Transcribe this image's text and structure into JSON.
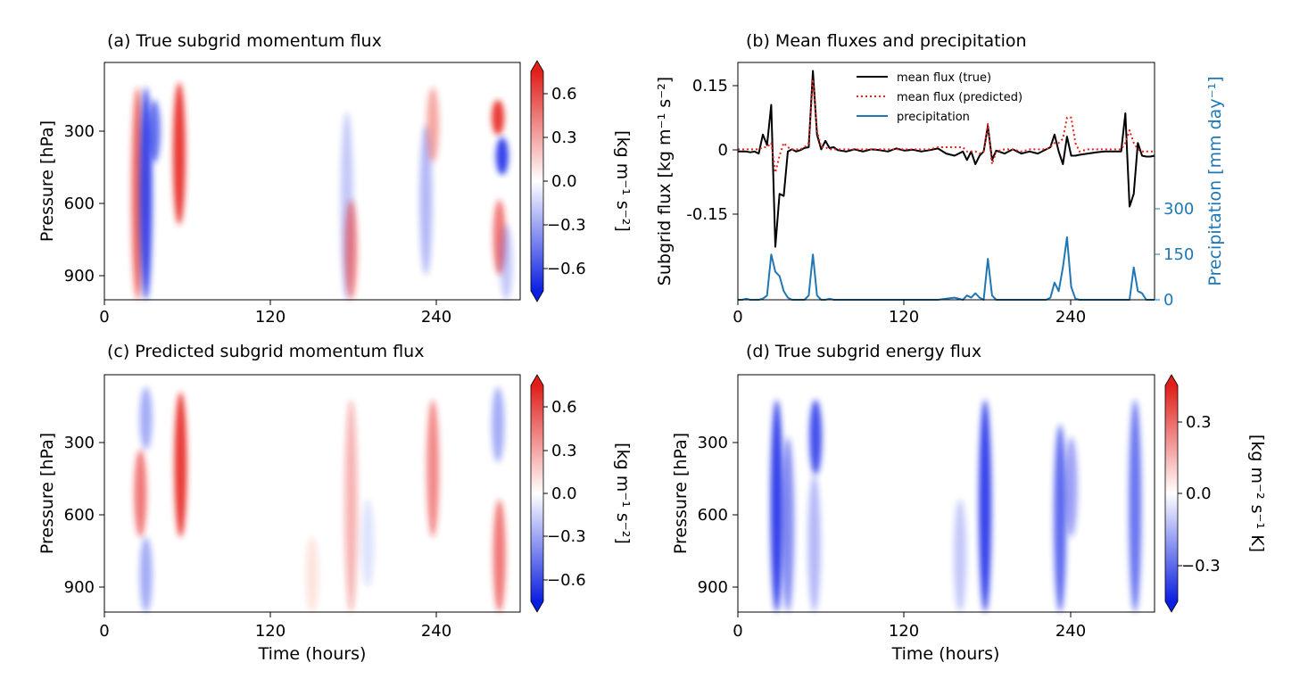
{
  "figure": {
    "panel_a": {
      "title": "(a) True subgrid momentum flux",
      "ylabel": "Pressure [hPa]",
      "yticks": [
        "300",
        "600",
        "900"
      ],
      "xticks": [
        "0",
        "120",
        "240"
      ],
      "colorbar_label": "[kg m⁻¹ s⁻²]",
      "colorbar_ticks": [
        "0.6",
        "0.3",
        "0.0",
        "−0.3",
        "−0.6"
      ]
    },
    "panel_b": {
      "title": "(b) Mean fluxes and precipitation",
      "ylabel_left": "Subgrid flux [kg m⁻¹ s⁻²]",
      "ylabel_right": "Precipitation  [mm day⁻¹]",
      "yticks_left": [
        "0.15",
        "0",
        "-0.15"
      ],
      "yticks_right": [
        "300",
        "150",
        "0"
      ],
      "xticks": [
        "0",
        "120",
        "240"
      ],
      "legend": [
        "mean flux (true)",
        "mean flux (predicted)",
        "precipitation"
      ]
    },
    "panel_c": {
      "title": "(c) Predicted subgrid momentum flux",
      "ylabel": "Pressure [hPa]",
      "xlabel": "Time (hours)",
      "yticks": [
        "300",
        "600",
        "900"
      ],
      "xticks": [
        "0",
        "120",
        "240"
      ],
      "colorbar_label": "[kg m⁻¹ s⁻²]",
      "colorbar_ticks": [
        "0.6",
        "0.3",
        "0.0",
        "−0.3",
        "−0.6"
      ]
    },
    "panel_d": {
      "title": "(d) True subgrid energy flux",
      "ylabel": "Pressure [hPa]",
      "xlabel": "Time (hours)",
      "yticks": [
        "300",
        "600",
        "900"
      ],
      "xticks": [
        "0",
        "120",
        "240"
      ],
      "colorbar_label": "[kg m⁻² s⁻¹ K]",
      "colorbar_ticks": [
        "0.3",
        "0.0",
        "−0.3"
      ]
    }
  },
  "colors": {
    "positive": "#e8221f",
    "negative": "#1f2ee8",
    "true_line": "#000000",
    "predicted_line": "#e8221f",
    "precip_line": "#1f77b4"
  },
  "chart_data": [
    {
      "type": "heatmap",
      "title": "(a) True subgrid momentum flux",
      "xlabel": "",
      "ylabel": "Pressure [hPa]",
      "xlim": [
        0,
        300
      ],
      "ylim_pressure_hPa": [
        1000,
        50
      ],
      "colorbar_range": [
        -0.75,
        0.75
      ],
      "features": [
        {
          "time": 24,
          "p_top": 150,
          "p_bottom": 1000,
          "value": 0.5
        },
        {
          "time": 30,
          "p_top": 150,
          "p_bottom": 1000,
          "value": -0.65
        },
        {
          "time": 36,
          "p_top": 200,
          "p_bottom": 450,
          "value": -0.5
        },
        {
          "time": 54,
          "p_top": 130,
          "p_bottom": 700,
          "value": 0.75
        },
        {
          "time": 175,
          "p_top": 250,
          "p_bottom": 1000,
          "value": -0.2
        },
        {
          "time": 178,
          "p_top": 600,
          "p_bottom": 1000,
          "value": 0.4
        },
        {
          "time": 232,
          "p_top": 300,
          "p_bottom": 900,
          "value": -0.25
        },
        {
          "time": 237,
          "p_top": 150,
          "p_bottom": 450,
          "value": 0.3
        },
        {
          "time": 284,
          "p_top": 200,
          "p_bottom": 340,
          "value": 0.75
        },
        {
          "time": 287,
          "p_top": 350,
          "p_bottom": 500,
          "value": -0.7
        },
        {
          "time": 285,
          "p_top": 600,
          "p_bottom": 900,
          "value": 0.45
        },
        {
          "time": 290,
          "p_top": 700,
          "p_bottom": 1000,
          "value": -0.2
        }
      ]
    },
    {
      "type": "line",
      "title": "(b) Mean fluxes and precipitation",
      "xlabel": "",
      "ylabel": "Subgrid flux [kg m⁻¹ s⁻²]",
      "ylabel_right": "Precipitation  [mm day⁻¹]",
      "xlim": [
        0,
        300
      ],
      "ylim": [
        -0.35,
        0.21
      ],
      "ylim_right": [
        0,
        1100
      ],
      "legend_position": "top-center",
      "x": [
        0,
        3,
        6,
        9,
        12,
        15,
        18,
        21,
        24,
        27,
        30,
        33,
        36,
        39,
        42,
        45,
        48,
        51,
        54,
        57,
        60,
        63,
        66,
        69,
        72,
        78,
        84,
        90,
        96,
        102,
        108,
        114,
        120,
        126,
        132,
        138,
        144,
        150,
        156,
        162,
        165,
        168,
        171,
        174,
        177,
        180,
        183,
        186,
        192,
        198,
        204,
        210,
        216,
        222,
        225,
        228,
        231,
        234,
        237,
        240,
        243,
        246,
        252,
        258,
        264,
        270,
        276,
        279,
        282,
        285,
        288,
        291,
        294,
        297,
        300
      ],
      "series": [
        {
          "name": "mean flux (true)",
          "axis": "left",
          "style": "solid",
          "values": [
            0.0,
            0.0,
            0.0,
            -0.002,
            0.0,
            -0.005,
            0.04,
            0.015,
            0.11,
            -0.225,
            -0.1,
            -0.105,
            0.0,
            0.005,
            0.0,
            0.003,
            0.008,
            0.01,
            0.19,
            0.04,
            0.005,
            0.025,
            0.008,
            0.01,
            0.003,
            0.0,
            0.005,
            0.0,
            0.005,
            0.003,
            0.0,
            0.007,
            0.002,
            0.004,
            0.0,
            0.003,
            0.007,
            -0.005,
            -0.01,
            0.0,
            -0.02,
            0.0,
            -0.03,
            -0.01,
            0.0,
            0.06,
            -0.02,
            0.002,
            -0.005,
            0.005,
            -0.005,
            0.0,
            -0.005,
            0.005,
            0.01,
            0.04,
            0.0,
            -0.03,
            0.035,
            -0.01,
            -0.01,
            -0.008,
            -0.005,
            -0.002,
            0.0,
            0.0,
            0.0,
            0.09,
            -0.13,
            -0.1,
            0.02,
            -0.01,
            -0.012,
            -0.012,
            -0.01
          ]
        },
        {
          "name": "mean flux (predicted)",
          "axis": "left",
          "style": "dotted",
          "values": [
            0.005,
            0.005,
            0.005,
            0.005,
            0.005,
            0.005,
            0.01,
            0.01,
            0.02,
            -0.05,
            -0.01,
            0.02,
            0.01,
            0.005,
            0.005,
            0.005,
            0.01,
            0.02,
            0.17,
            0.05,
            0.01,
            0.01,
            0.005,
            0.005,
            0.005,
            0.005,
            0.005,
            0.005,
            0.005,
            0.005,
            0.005,
            0.005,
            0.005,
            0.005,
            0.005,
            0.005,
            0.01,
            0.01,
            0.01,
            0.01,
            0.0,
            0.0,
            0.0,
            -0.005,
            0.0,
            0.065,
            -0.03,
            0.0,
            0.005,
            0.005,
            0.0,
            0.005,
            0.005,
            0.005,
            0.01,
            0.02,
            0.02,
            0.03,
            0.08,
            0.08,
            0.02,
            0.0,
            0.005,
            0.005,
            0.005,
            0.005,
            0.005,
            0.02,
            0.05,
            0.02,
            0.005,
            0.0,
            0.0,
            0.0,
            0.0
          ]
        },
        {
          "name": "precipitation",
          "axis": "right",
          "style": "solid",
          "values": [
            0,
            0,
            5,
            0,
            0,
            0,
            5,
            20,
            210,
            130,
            110,
            40,
            10,
            0,
            0,
            0,
            0,
            20,
            210,
            20,
            0,
            0,
            5,
            0,
            0,
            0,
            0,
            0,
            0,
            0,
            0,
            0,
            0,
            0,
            0,
            0,
            0,
            5,
            10,
            0,
            20,
            10,
            30,
            10,
            0,
            190,
            20,
            0,
            0,
            0,
            0,
            0,
            0,
            0,
            10,
            80,
            40,
            150,
            290,
            60,
            5,
            0,
            0,
            0,
            0,
            0,
            0,
            0,
            0,
            150,
            40,
            30,
            0,
            0,
            0
          ]
        }
      ]
    },
    {
      "type": "heatmap",
      "title": "(c) Predicted subgrid momentum flux",
      "xlabel": "Time (hours)",
      "ylabel": "Pressure [hPa]",
      "xlim": [
        0,
        300
      ],
      "ylim_pressure_hPa": [
        1000,
        50
      ],
      "colorbar_range": [
        -0.75,
        0.75
      ],
      "features": [
        {
          "time": 26,
          "p_top": 350,
          "p_bottom": 700,
          "value": 0.45
        },
        {
          "time": 30,
          "p_top": 100,
          "p_bottom": 350,
          "value": -0.3
        },
        {
          "time": 30,
          "p_top": 700,
          "p_bottom": 1000,
          "value": -0.3
        },
        {
          "time": 55,
          "p_top": 120,
          "p_bottom": 700,
          "value": 0.7
        },
        {
          "time": 150,
          "p_top": 700,
          "p_bottom": 1000,
          "value": 0.1
        },
        {
          "time": 178,
          "p_top": 150,
          "p_bottom": 1000,
          "value": 0.25
        },
        {
          "time": 190,
          "p_top": 550,
          "p_bottom": 900,
          "value": -0.1
        },
        {
          "time": 237,
          "p_top": 150,
          "p_bottom": 700,
          "value": 0.4
        },
        {
          "time": 284,
          "p_top": 100,
          "p_bottom": 400,
          "value": -0.3
        },
        {
          "time": 285,
          "p_top": 550,
          "p_bottom": 1000,
          "value": 0.45
        }
      ]
    },
    {
      "type": "heatmap",
      "title": "(d) True subgrid energy flux",
      "xlabel": "Time (hours)",
      "ylabel": "Pressure [hPa]",
      "xlim": [
        0,
        300
      ],
      "ylim_pressure_hPa": [
        1000,
        50
      ],
      "colorbar_range": [
        -0.45,
        0.45
      ],
      "features": [
        {
          "time": 28,
          "p_top": 150,
          "p_bottom": 1000,
          "value": -0.42
        },
        {
          "time": 36,
          "p_top": 300,
          "p_bottom": 1000,
          "value": -0.25
        },
        {
          "time": 56,
          "p_top": 150,
          "p_bottom": 450,
          "value": -0.38
        },
        {
          "time": 55,
          "p_top": 450,
          "p_bottom": 1000,
          "value": -0.15
        },
        {
          "time": 160,
          "p_top": 550,
          "p_bottom": 1000,
          "value": -0.12
        },
        {
          "time": 178,
          "p_top": 150,
          "p_bottom": 1000,
          "value": -0.42
        },
        {
          "time": 232,
          "p_top": 250,
          "p_bottom": 1000,
          "value": -0.32
        },
        {
          "time": 240,
          "p_top": 300,
          "p_bottom": 700,
          "value": -0.2
        },
        {
          "time": 286,
          "p_top": 150,
          "p_bottom": 1000,
          "value": -0.3
        }
      ]
    }
  ]
}
